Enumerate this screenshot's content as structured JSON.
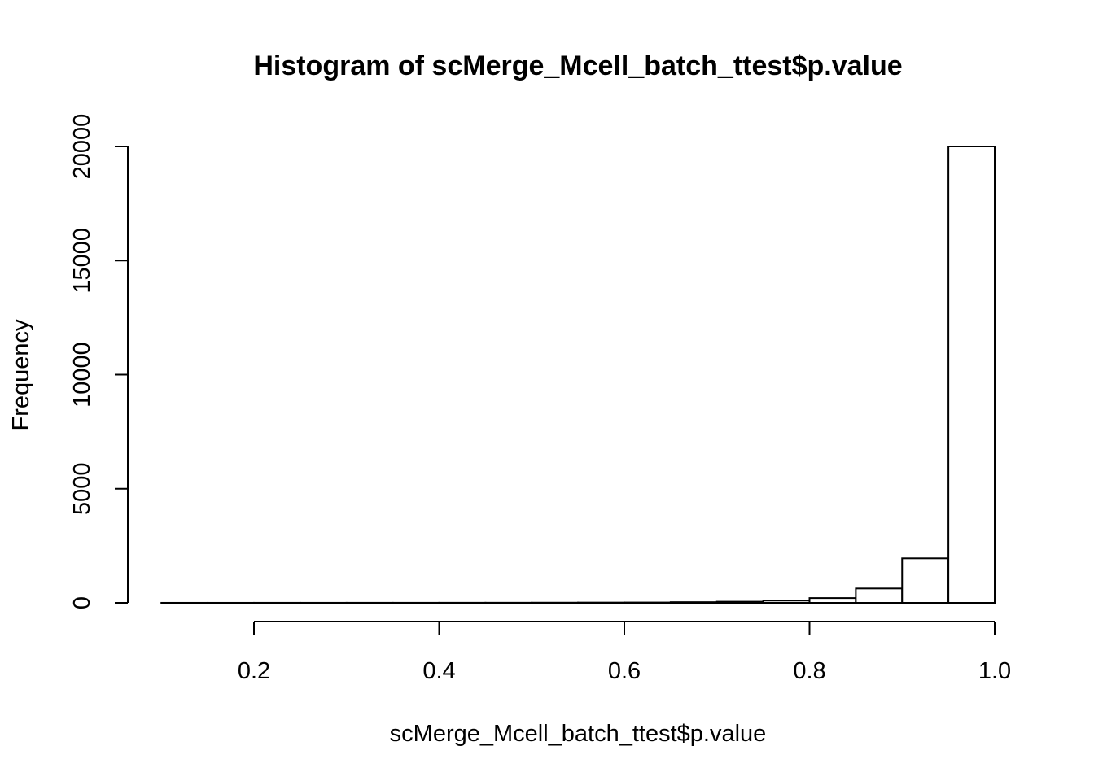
{
  "chart_data": {
    "type": "bar",
    "title": "Histogram of scMerge_Mcell_batch_ttest$p.value",
    "xlabel": "scMerge_Mcell_batch_ttest$p.value",
    "ylabel": "Frequency",
    "bin_width": 0.05,
    "bin_starts": [
      0.1,
      0.15,
      0.2,
      0.25,
      0.3,
      0.35,
      0.4,
      0.45,
      0.5,
      0.55,
      0.6,
      0.65,
      0.7,
      0.75,
      0.8,
      0.85,
      0.9,
      0.95
    ],
    "values": [
      1,
      1,
      2,
      2,
      3,
      3,
      4,
      5,
      8,
      12,
      15,
      30,
      50,
      100,
      210,
      630,
      1950,
      20000
    ],
    "xlim": [
      0.1,
      1.0
    ],
    "ylim": [
      0,
      20000
    ],
    "x_ticks": [
      0.2,
      0.4,
      0.6,
      0.8,
      1.0
    ],
    "x_tick_labels": [
      "0.2",
      "0.4",
      "0.6",
      "0.8",
      "1.0"
    ],
    "y_ticks": [
      0,
      5000,
      10000,
      15000,
      20000
    ],
    "y_tick_labels": [
      "0",
      "5000",
      "10000",
      "15000",
      "20000"
    ],
    "grid": false,
    "legend": "none"
  }
}
